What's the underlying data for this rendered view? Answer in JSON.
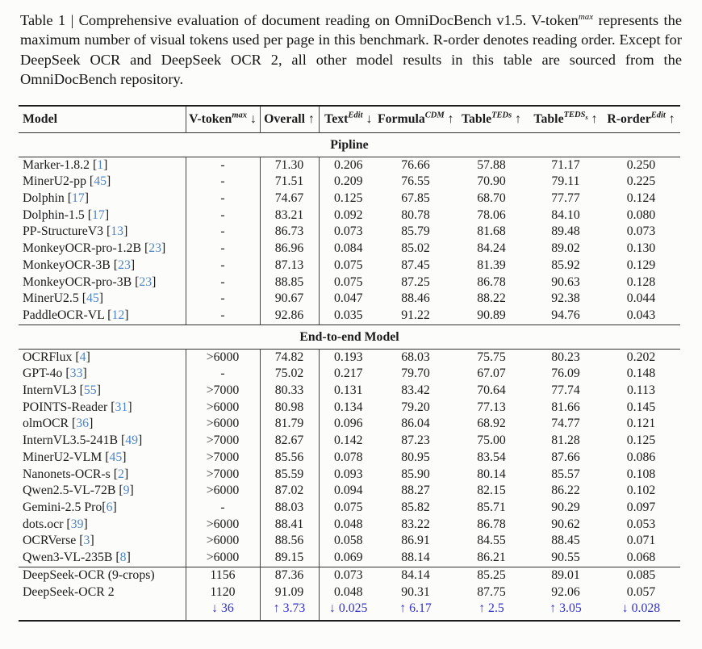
{
  "caption": {
    "before_sup": "Table 1 | Comprehensive evaluation of document reading on OmniDocBench v1.5. V-token",
    "sup": "max",
    "after_sup": " represents the maximum number of visual tokens used per page in this benchmark. R-order denotes reading order. Except for DeepSeek OCR and DeepSeek OCR 2, all other model results in this table are sourced from the OmniDocBench repository."
  },
  "colors": {
    "citation_blue": "#4f86c6",
    "delta_blue": "#3232c8",
    "text_black": "#1b1b1b"
  },
  "table": {
    "cite_brackets": [
      "[",
      "]"
    ],
    "columns": [
      {
        "key": "model",
        "label": "Model"
      },
      {
        "key": "vtoken",
        "label": "V-token",
        "sup": "max",
        "arrow": "↓"
      },
      {
        "key": "overall",
        "label": "Overall",
        "arrow": "↑"
      },
      {
        "key": "text",
        "label": "Text",
        "sup": "Edit",
        "arrow": "↓"
      },
      {
        "key": "formula",
        "label": "Formula",
        "sup": "CDM",
        "arrow": "↑"
      },
      {
        "key": "table_teds",
        "label": "Table",
        "sup": "TEDs",
        "arrow": "↑"
      },
      {
        "key": "table_tedss",
        "label": "Table",
        "sup": "TEDS",
        "sup_sub": "s",
        "arrow": "↑"
      },
      {
        "key": "rorder",
        "label": "R-order",
        "sup": "Edit",
        "arrow": "↑"
      }
    ],
    "sections": [
      {
        "title": "Pipline",
        "rows": [
          {
            "name": "Marker-1.8.2",
            "cite": "1",
            "values": [
              "-",
              "71.30",
              "0.206",
              "76.66",
              "57.88",
              "71.17",
              "0.250"
            ]
          },
          {
            "name": "MinerU2-pp",
            "cite": "45",
            "values": [
              "-",
              "71.51",
              "0.209",
              "76.55",
              "70.90",
              "79.11",
              "0.225"
            ]
          },
          {
            "name": "Dolphin",
            "cite": "17",
            "values": [
              "-",
              "74.67",
              "0.125",
              "67.85",
              "68.70",
              "77.77",
              "0.124"
            ]
          },
          {
            "name": "Dolphin-1.5",
            "cite": "17",
            "values": [
              "-",
              "83.21",
              "0.092",
              "80.78",
              "78.06",
              "84.10",
              "0.080"
            ]
          },
          {
            "name": "PP-StructureV3",
            "cite": "13",
            "values": [
              "-",
              "86.73",
              "0.073",
              "85.79",
              "81.68",
              "89.48",
              "0.073"
            ]
          },
          {
            "name": "MonkeyOCR-pro-1.2B",
            "cite": "23",
            "values": [
              "-",
              "86.96",
              "0.084",
              "85.02",
              "84.24",
              "89.02",
              "0.130"
            ]
          },
          {
            "name": "MonkeyOCR-3B",
            "cite": "23",
            "values": [
              "-",
              "87.13",
              "0.075",
              "87.45",
              "81.39",
              "85.92",
              "0.129"
            ]
          },
          {
            "name": "MonkeyOCR-pro-3B",
            "cite": "23",
            "values": [
              "-",
              "88.85",
              "0.075",
              "87.25",
              "86.78",
              "90.63",
              "0.128"
            ]
          },
          {
            "name": "MinerU2.5",
            "cite": "45",
            "values": [
              "-",
              "90.67",
              "0.047",
              "88.46",
              "88.22",
              "92.38",
              "0.044"
            ]
          },
          {
            "name": "PaddleOCR-VL",
            "cite": "12",
            "values": [
              "-",
              "92.86",
              "0.035",
              "91.22",
              "90.89",
              "94.76",
              "0.043"
            ]
          }
        ]
      },
      {
        "title": "End-to-end Model",
        "rows": [
          {
            "name": "OCRFlux",
            "cite": "4",
            "values": [
              ">6000",
              "74.82",
              "0.193",
              "68.03",
              "75.75",
              "80.23",
              "0.202"
            ]
          },
          {
            "name": "GPT-4o",
            "cite": "33",
            "values": [
              "-",
              "75.02",
              "0.217",
              "79.70",
              "67.07",
              "76.09",
              "0.148"
            ]
          },
          {
            "name": "InternVL3",
            "cite": "55",
            "values": [
              ">7000",
              "80.33",
              "0.131",
              "83.42",
              "70.64",
              "77.74",
              "0.113"
            ]
          },
          {
            "name": "POINTS-Reader",
            "cite": "31",
            "values": [
              ">6000",
              "80.98",
              "0.134",
              "79.20",
              "77.13",
              "81.66",
              "0.145"
            ]
          },
          {
            "name": "olmOCR",
            "cite": "36",
            "values": [
              ">6000",
              "81.79",
              "0.096",
              "86.04",
              "68.92",
              "74.77",
              "0.121"
            ]
          },
          {
            "name": "InternVL3.5-241B",
            "cite": "49",
            "values": [
              ">7000",
              "82.67",
              "0.142",
              "87.23",
              "75.00",
              "81.28",
              "0.125"
            ]
          },
          {
            "name": "MinerU2-VLM",
            "cite": "45",
            "values": [
              ">7000",
              "85.56",
              "0.078",
              "80.95",
              "83.54",
              "87.66",
              "0.086"
            ]
          },
          {
            "name": "Nanonets-OCR-s",
            "cite": "2",
            "values": [
              ">7000",
              "85.59",
              "0.093",
              "85.90",
              "80.14",
              "85.57",
              "0.108"
            ]
          },
          {
            "name": "Qwen2.5-VL-72B",
            "cite": "9",
            "values": [
              ">6000",
              "87.02",
              "0.094",
              "88.27",
              "82.15",
              "86.22",
              "0.102"
            ]
          },
          {
            "name": "Gemini-2.5 Pro",
            "cite": "6",
            "cite_sep": "",
            "values": [
              "-",
              "88.03",
              "0.075",
              "85.82",
              "85.71",
              "90.29",
              "0.097"
            ]
          },
          {
            "name": "dots.ocr",
            "cite": "39",
            "values": [
              ">6000",
              "88.41",
              "0.048",
              "83.22",
              "86.78",
              "90.62",
              "0.053"
            ]
          },
          {
            "name": "OCRVerse",
            "cite": "3",
            "values": [
              ">6000",
              "88.56",
              "0.058",
              "86.91",
              "84.55",
              "88.45",
              "0.071"
            ]
          },
          {
            "name": "Qwen3-VL-235B",
            "cite": "8",
            "values": [
              ">6000",
              "89.15",
              "0.069",
              "88.14",
              "86.21",
              "90.55",
              "0.068"
            ]
          }
        ]
      },
      {
        "title": null,
        "rows": [
          {
            "name": "DeepSeek-OCR (9-crops)",
            "values": [
              "1156",
              "87.36",
              "0.073",
              "84.14",
              "85.25",
              "89.01",
              "0.085"
            ]
          },
          {
            "name": "DeepSeek-OCR 2",
            "values": [
              "1120",
              "91.09",
              "0.048",
              "90.31",
              "87.75",
              "92.06",
              "0.057"
            ]
          }
        ],
        "delta": [
          {
            "arrow": "↓",
            "value": "36"
          },
          {
            "arrow": "↑",
            "value": "3.73"
          },
          {
            "arrow": "↓",
            "value": "0.025"
          },
          {
            "arrow": "↑",
            "value": "6.17"
          },
          {
            "arrow": "↑",
            "value": "2.5"
          },
          {
            "arrow": "↑",
            "value": "3.05"
          },
          {
            "arrow": "↓",
            "value": "0.028"
          }
        ]
      }
    ]
  }
}
